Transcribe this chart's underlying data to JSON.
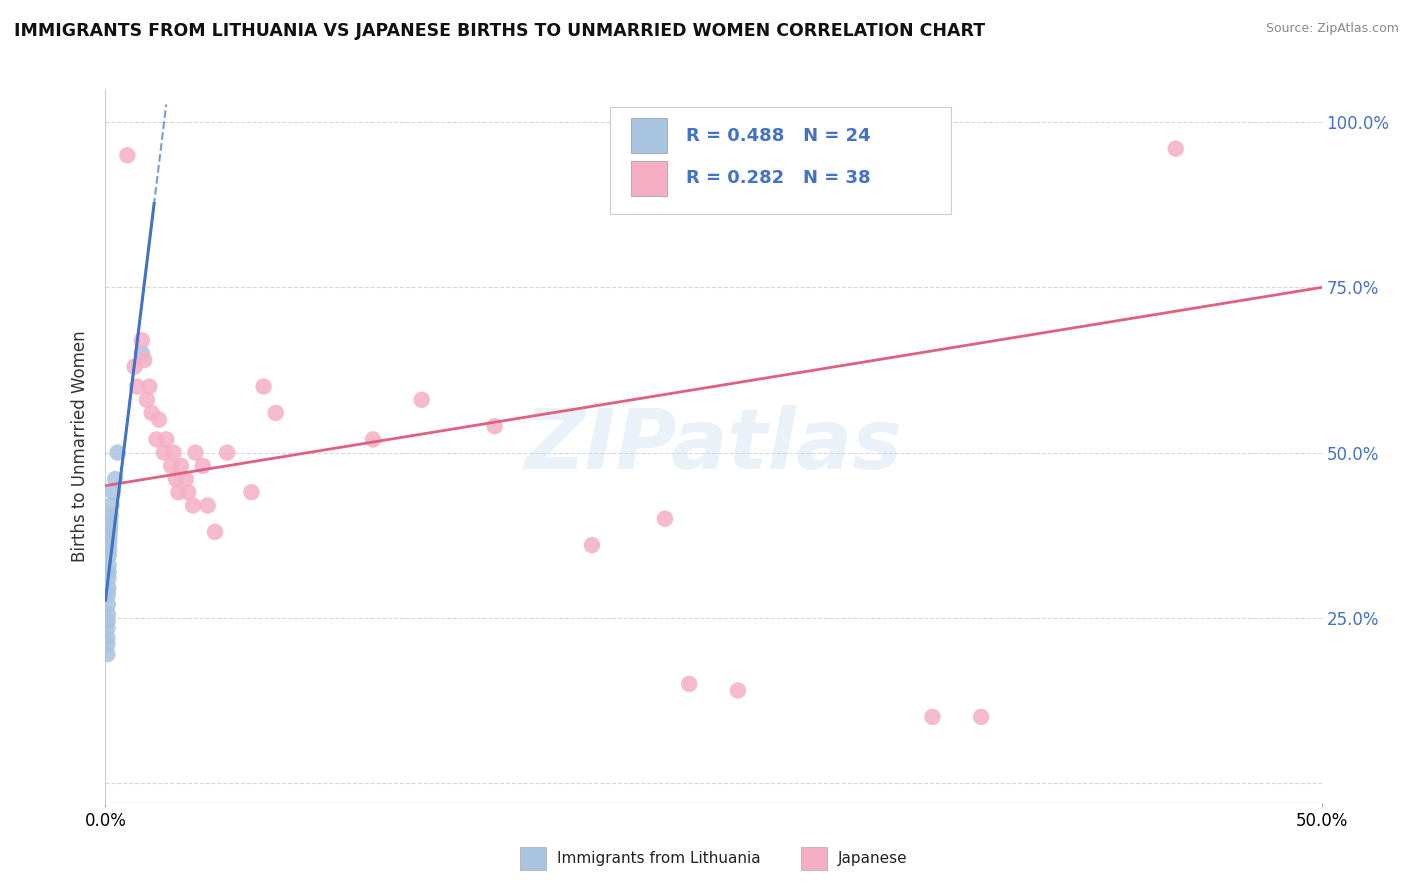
{
  "title": "IMMIGRANTS FROM LITHUANIA VS JAPANESE BIRTHS TO UNMARRIED WOMEN CORRELATION CHART",
  "source": "Source: ZipAtlas.com",
  "ylabel": "Births to Unmarried Women",
  "xmin": 0.0,
  "xmax": 0.5,
  "ymin": -0.03,
  "ymax": 1.05,
  "yticks": [
    0.0,
    0.25,
    0.5,
    0.75,
    1.0
  ],
  "right_ytick_labels": [
    "",
    "25.0%",
    "50.0%",
    "75.0%",
    "100.0%"
  ],
  "xtick_labels": [
    "0.0%",
    "50.0%"
  ],
  "blue_R": "0.488",
  "blue_N": "24",
  "pink_R": "0.282",
  "pink_N": "38",
  "blue_scatter_color": "#a8c4e0",
  "pink_scatter_color": "#f4afc4",
  "blue_line_color": "#4472c4",
  "pink_line_color": "#e06080",
  "blue_label": "Immigrants from Lithuania",
  "pink_label": "Japanese",
  "legend_text_color": "#4472c4",
  "blue_scatter": [
    [
      0.0008,
      0.195
    ],
    [
      0.0008,
      0.21
    ],
    [
      0.0008,
      0.22
    ],
    [
      0.0008,
      0.235
    ],
    [
      0.0009,
      0.245
    ],
    [
      0.001,
      0.255
    ],
    [
      0.001,
      0.27
    ],
    [
      0.001,
      0.285
    ],
    [
      0.0012,
      0.295
    ],
    [
      0.0012,
      0.31
    ],
    [
      0.0013,
      0.32
    ],
    [
      0.0013,
      0.33
    ],
    [
      0.0014,
      0.345
    ],
    [
      0.0015,
      0.355
    ],
    [
      0.0016,
      0.365
    ],
    [
      0.0018,
      0.375
    ],
    [
      0.002,
      0.385
    ],
    [
      0.002,
      0.395
    ],
    [
      0.0022,
      0.405
    ],
    [
      0.0025,
      0.42
    ],
    [
      0.003,
      0.44
    ],
    [
      0.004,
      0.46
    ],
    [
      0.005,
      0.5
    ],
    [
      0.015,
      0.65
    ]
  ],
  "pink_scatter": [
    [
      0.009,
      0.95
    ],
    [
      0.012,
      0.63
    ],
    [
      0.013,
      0.6
    ],
    [
      0.015,
      0.67
    ],
    [
      0.016,
      0.64
    ],
    [
      0.017,
      0.58
    ],
    [
      0.018,
      0.6
    ],
    [
      0.019,
      0.56
    ],
    [
      0.021,
      0.52
    ],
    [
      0.022,
      0.55
    ],
    [
      0.024,
      0.5
    ],
    [
      0.025,
      0.52
    ],
    [
      0.027,
      0.48
    ],
    [
      0.028,
      0.5
    ],
    [
      0.029,
      0.46
    ],
    [
      0.03,
      0.44
    ],
    [
      0.031,
      0.48
    ],
    [
      0.033,
      0.46
    ],
    [
      0.034,
      0.44
    ],
    [
      0.036,
      0.42
    ],
    [
      0.037,
      0.5
    ],
    [
      0.04,
      0.48
    ],
    [
      0.042,
      0.42
    ],
    [
      0.045,
      0.38
    ],
    [
      0.05,
      0.5
    ],
    [
      0.06,
      0.44
    ],
    [
      0.065,
      0.6
    ],
    [
      0.07,
      0.56
    ],
    [
      0.11,
      0.52
    ],
    [
      0.13,
      0.58
    ],
    [
      0.16,
      0.54
    ],
    [
      0.2,
      0.36
    ],
    [
      0.23,
      0.4
    ],
    [
      0.24,
      0.15
    ],
    [
      0.26,
      0.14
    ],
    [
      0.34,
      0.1
    ],
    [
      0.36,
      0.1
    ],
    [
      0.44,
      0.96
    ]
  ],
  "watermark": "ZIPatlas",
  "background_color": "#ffffff",
  "grid_color": "#d8d8d8"
}
